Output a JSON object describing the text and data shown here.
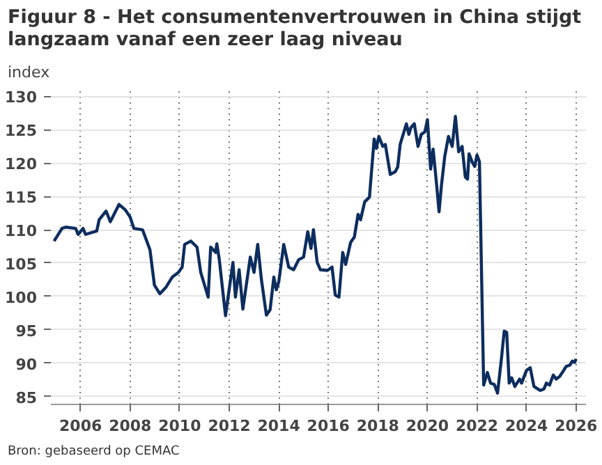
{
  "chart_data": {
    "type": "line",
    "title": "Figuur 8 - Het consumentenvertrouwen in China stijgt\nlangzaam vanaf een zeer laag niveau",
    "ylabel": "index",
    "annotations": [
      "Bron: gebaseerd op CEMAC"
    ],
    "series": [
      {
        "color": "#0d2d5e",
        "x": [
          2004.93,
          2005.25,
          2005.4,
          2005.8,
          2005.9,
          2006.1,
          2006.2,
          2006.65,
          2006.75,
          2007.03,
          2007.2,
          2007.55,
          2007.8,
          2008.0,
          2008.15,
          2008.5,
          2008.8,
          2008.98,
          2009.2,
          2009.45,
          2009.7,
          2009.95,
          2010.1,
          2010.2,
          2010.45,
          2010.7,
          2010.85,
          2011.15,
          2011.25,
          2011.45,
          2011.5,
          2011.6,
          2011.85,
          2012.15,
          2012.25,
          2012.4,
          2012.55,
          2012.85,
          2013.0,
          2013.15,
          2013.3,
          2013.5,
          2013.65,
          2013.8,
          2013.9,
          2014.0,
          2014.2,
          2014.4,
          2014.6,
          2014.8,
          2015.0,
          2015.17,
          2015.3,
          2015.4,
          2015.55,
          2015.68,
          2015.96,
          2016.15,
          2016.28,
          2016.43,
          2016.58,
          2016.7,
          2016.9,
          2017.05,
          2017.2,
          2017.3,
          2017.47,
          2017.66,
          2017.85,
          2017.94,
          2018.04,
          2018.2,
          2018.3,
          2018.5,
          2018.7,
          2018.8,
          2018.9,
          2019.15,
          2019.25,
          2019.33,
          2019.47,
          2019.62,
          2019.75,
          2019.9,
          2020.0,
          2020.13,
          2020.23,
          2020.38,
          2020.47,
          2020.57,
          2020.7,
          2020.85,
          2021.0,
          2021.13,
          2021.26,
          2021.4,
          2021.53,
          2021.62,
          2021.68,
          2021.8,
          2021.91,
          2022.0,
          2022.1,
          2022.27,
          2022.42,
          2022.55,
          2022.7,
          2022.83,
          2022.98,
          2023.1,
          2023.2,
          2023.3,
          2023.4,
          2023.53,
          2023.72,
          2023.8,
          2024.0,
          2024.15,
          2024.3,
          2024.55,
          2024.7,
          2024.8,
          2024.93,
          2025.08,
          2025.2,
          2025.34,
          2025.5,
          2025.6,
          2025.75,
          2025.85,
          2025.94,
          2026.0
        ],
        "values": [
          108.3,
          110.2,
          110.4,
          110.2,
          109.3,
          110.2,
          109.3,
          109.8,
          111.5,
          112.8,
          111.2,
          113.8,
          113.0,
          111.9,
          110.2,
          110.0,
          107.0,
          101.7,
          100.4,
          101.4,
          102.9,
          103.6,
          104.4,
          107.8,
          108.3,
          107.4,
          103.6,
          99.9,
          107.4,
          106.6,
          107.9,
          105.5,
          97.1,
          105.1,
          99.9,
          104.0,
          98.1,
          105.9,
          103.6,
          107.8,
          102.5,
          97.2,
          98.0,
          102.9,
          101.0,
          102.2,
          107.8,
          104.4,
          104.0,
          105.5,
          105.9,
          109.7,
          107.2,
          110.0,
          105.1,
          104.0,
          103.9,
          104.4,
          100.2,
          99.9,
          106.6,
          104.8,
          108.1,
          108.9,
          112.3,
          111.5,
          114.2,
          114.9,
          123.6,
          122.2,
          124.0,
          122.5,
          122.8,
          118.3,
          118.7,
          119.4,
          122.8,
          125.9,
          124.3,
          125.3,
          125.9,
          122.5,
          124.3,
          124.7,
          126.5,
          119.1,
          122.1,
          116.4,
          112.7,
          116.8,
          121.0,
          124.0,
          122.5,
          127.0,
          121.7,
          122.5,
          117.9,
          117.6,
          121.4,
          120.2,
          119.5,
          121.2,
          120.2,
          86.7,
          88.6,
          87.0,
          86.8,
          85.5,
          90.4,
          94.8,
          94.6,
          87.0,
          87.8,
          86.5,
          87.6,
          87.0,
          88.9,
          89.3,
          86.5,
          85.9,
          86.1,
          87.0,
          86.7,
          88.2,
          87.6,
          88.0,
          88.9,
          89.5,
          89.7,
          90.3,
          90.1,
          90.6
        ]
      }
    ],
    "xlim": [
      2004.8,
      2026.4
    ],
    "ylim": [
      83.8,
      131.2
    ],
    "xticks": [
      2006,
      2008,
      2010,
      2012,
      2014,
      2016,
      2018,
      2020,
      2022,
      2024,
      2026
    ],
    "yticks": [
      85,
      90,
      95,
      100,
      105,
      110,
      115,
      120,
      125,
      130
    ],
    "grid": true,
    "marker": "none",
    "line_style": "solid"
  }
}
